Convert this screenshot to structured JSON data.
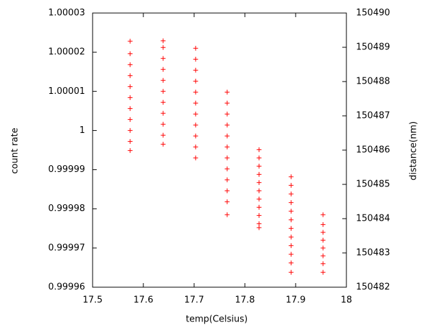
{
  "chart_data": {
    "type": "scatter",
    "xlabel": "temp(Celsius)",
    "ylabel": "count rate",
    "y2label": "distance(nm)",
    "color": "#ff0000",
    "x": [
      17.574,
      17.574,
      17.574,
      17.574,
      17.574,
      17.574,
      17.574,
      17.574,
      17.574,
      17.574,
      17.574,
      17.639,
      17.639,
      17.639,
      17.639,
      17.639,
      17.639,
      17.639,
      17.639,
      17.639,
      17.639,
      17.639,
      17.703,
      17.703,
      17.703,
      17.703,
      17.703,
      17.703,
      17.703,
      17.703,
      17.703,
      17.703,
      17.703,
      17.765,
      17.765,
      17.765,
      17.765,
      17.765,
      17.765,
      17.765,
      17.765,
      17.765,
      17.765,
      17.765,
      17.765,
      17.828,
      17.828,
      17.828,
      17.828,
      17.828,
      17.828,
      17.828,
      17.828,
      17.828,
      17.828,
      17.828,
      17.891,
      17.891,
      17.891,
      17.891,
      17.891,
      17.891,
      17.891,
      17.891,
      17.891,
      17.891,
      17.891,
      17.891,
      17.954,
      17.954,
      17.954,
      17.954,
      17.954,
      17.954,
      17.954,
      17.954
    ],
    "values": [
      1.0000228,
      1.0000196,
      1.0000168,
      1.000014,
      1.0000112,
      1.0000084,
      1.0000056,
      1.0000028,
      1,
      0.9999972,
      0.9999949,
      1.0000229,
      1.0000212,
      1.0000184,
      1.0000156,
      1.0000128,
      1.00001,
      1.0000072,
      1.0000044,
      1.0000016,
      0.9999988,
      0.9999965,
      1.000021,
      1.0000182,
      1.0000154,
      1.0000126,
      1.0000098,
      1.000007,
      1.0000042,
      1.0000014,
      0.9999986,
      0.9999958,
      0.999993,
      1.0000098,
      1.000007,
      1.0000042,
      1.0000014,
      0.9999986,
      0.9999958,
      0.999993,
      0.9999902,
      0.9999874,
      0.9999846,
      0.9999818,
      0.9999785,
      0.9999951,
      0.999993,
      0.9999909,
      0.9999888,
      0.9999867,
      0.9999846,
      0.9999825,
      0.9999804,
      0.9999783,
      0.9999762,
      0.9999752,
      0.9999882,
      0.999986,
      0.9999838,
      0.9999816,
      0.9999794,
      0.9999772,
      0.999975,
      0.9999728,
      0.9999706,
      0.9999684,
      0.9999662,
      0.9999638,
      0.9999785,
      0.999976,
      0.999974,
      0.999972,
      0.99997,
      0.999968,
      0.999966,
      0.9999638
    ],
    "xlim": [
      17.5,
      18
    ],
    "xticks": [
      17.5,
      17.6,
      17.7,
      17.8,
      17.9,
      18
    ],
    "ylim": [
      0.99996,
      1.00003
    ],
    "yticks": [
      0.99996,
      0.99997,
      0.99998,
      0.99999,
      1,
      1.00001,
      1.00002,
      1.00003
    ],
    "y2lim": [
      150482,
      150490
    ],
    "y2ticks": [
      150482,
      150483,
      150484,
      150485,
      150486,
      150487,
      150488,
      150489,
      150490
    ]
  }
}
